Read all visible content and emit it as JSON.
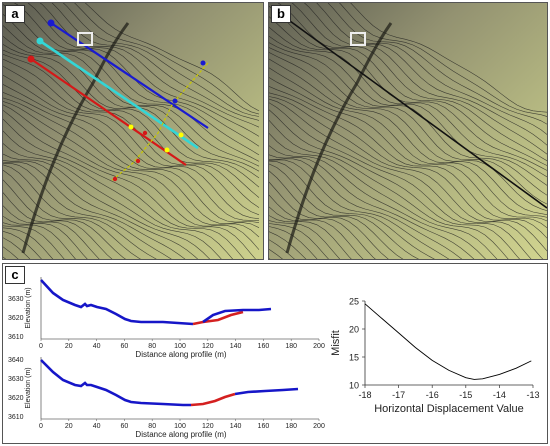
{
  "panels": {
    "a": "a",
    "b": "b",
    "c": "c"
  },
  "profiles": [
    {
      "ylabel": "Elevation (m)",
      "xlabel": "Distance along profile (m)",
      "yticks": [
        "3640",
        "3630",
        "3620",
        "3610"
      ],
      "xticks": [
        "0",
        "20",
        "40",
        "60",
        "80",
        "100",
        "120",
        "140",
        "160",
        "180",
        "200"
      ]
    },
    {
      "ylabel": "Elevation (m)",
      "xlabel": "Distance along profile (m)",
      "yticks": [
        "3640",
        "3630",
        "3620",
        "3610"
      ],
      "xticks": [
        "0",
        "20",
        "40",
        "60",
        "80",
        "100",
        "120",
        "140",
        "160",
        "180",
        "200"
      ]
    }
  ],
  "chart_data": {
    "type": "line",
    "xlabel": "Horizontal Displacement Value",
    "ylabel": "Misfit",
    "xlim": [
      -18,
      -13
    ],
    "ylim": [
      10,
      25
    ],
    "xticks": [
      "-18",
      "-17",
      "-16",
      "-15",
      "-14",
      "-13"
    ],
    "yticks": [
      "25",
      "20",
      "15",
      "10"
    ],
    "series": [
      {
        "x": [
          -18,
          -17.5,
          -17,
          -16.5,
          -16,
          -15.5,
          -15,
          -14.75,
          -14.5,
          -14,
          -13.5,
          -13.05
        ],
        "values": [
          24.5,
          21.9,
          19.3,
          16.7,
          14.4,
          12.6,
          11.3,
          11.0,
          11.1,
          11.9,
          13.0,
          14.3
        ]
      }
    ]
  },
  "colors": {
    "profile": "#1616c8",
    "offset": "#d42020",
    "misfit": "#000000",
    "line_blue": "#1a1ad0",
    "line_cyan": "#33d6d6",
    "line_red": "#d41818"
  }
}
